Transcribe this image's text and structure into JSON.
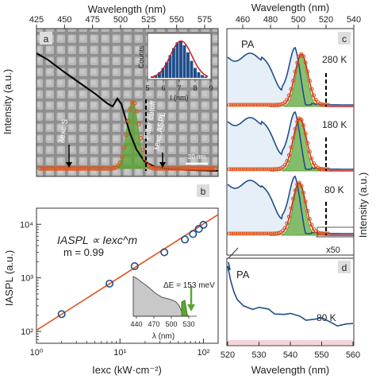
{
  "colors": {
    "blue": "#1f4e8c",
    "orange": "#e2561b",
    "green": "#5aa631",
    "red": "#c81e1e",
    "sem_bg": "#9c9c9c",
    "pa_fill": "#e6eef7",
    "inset_gray": "#c8c8c8",
    "inset_dark": "#555555"
  },
  "panel_a": {
    "letter": "a",
    "top_axis_label": "Wavelength (nm)",
    "top_ticks": [
      "425",
      "450",
      "475",
      "500",
      "525",
      "550",
      "575"
    ],
    "ylabel": "Intensity (a.u.)",
    "label_exc_s": "λexc,S",
    "label_exc_aspl": "λexc,ASPL",
    "label_filter": "Filter cutoff",
    "scalebar": "20 nm",
    "inset": {
      "ylabel": "Counts",
      "xlabel": "l (nm)",
      "xticks": [
        "5",
        "6",
        "7",
        "8",
        "9"
      ]
    }
  },
  "panel_b": {
    "letter": "b",
    "ylabel": "IASPL (a.u.)",
    "xlabel": "Iexc (kW·cm⁻²)",
    "formula": "IASPL ∝ Iexc^m",
    "m_text": "m = 0.99",
    "yticks": [
      "10²",
      "10³",
      "10⁴"
    ],
    "xticks": [
      "10⁰",
      "10¹",
      "10²"
    ],
    "inset": {
      "delta": "ΔE = 153 meV",
      "xlabel": "λ (nm)",
      "xticks": [
        "440",
        "470",
        "500",
        "530"
      ]
    }
  },
  "panel_c": {
    "letter": "c",
    "top_axis_label": "Wavelength (nm)",
    "top_ticks": [
      "460",
      "480",
      "500",
      "520",
      "540"
    ],
    "ylabel": "Intensity (a.u.)",
    "pa_label": "PA",
    "temps": [
      "280 K",
      "180 K",
      "80 K"
    ]
  },
  "panel_d": {
    "letter": "d",
    "pa_label": "PA",
    "temp": "80 K",
    "x50": "x50",
    "xlabel": "Wavelength (nm)",
    "xticks": [
      "520",
      "530",
      "540",
      "550",
      "560"
    ]
  },
  "chart_data": [
    {
      "type": "line",
      "panel": "b",
      "title": "",
      "xlabel": "Iexc (kW·cm⁻²)",
      "ylabel": "IASPL (a.u.)",
      "xscale": "log",
      "yscale": "log",
      "xlim": [
        1,
        150
      ],
      "ylim": [
        60,
        20000
      ],
      "series": [
        {
          "marker": "circle",
          "x": [
            2,
            7.5,
            15,
            34,
            60,
            75,
            88,
            100
          ],
          "y": [
            210,
            780,
            1650,
            3000,
            5200,
            6600,
            8200,
            9800
          ]
        },
        {
          "marker": "line",
          "x": [
            1,
            150
          ],
          "y": [
            105,
            15200
          ]
        }
      ]
    },
    {
      "type": "bar",
      "panel": "a-inset",
      "xlabel": "l (nm)",
      "ylabel": "Counts",
      "categories": [
        "5.0",
        "5.25",
        "5.5",
        "5.75",
        "6.0",
        "6.25",
        "6.5",
        "6.75",
        "7.0",
        "7.25",
        "7.5",
        "7.75",
        "8.0",
        "8.25",
        "8.5",
        "8.75"
      ],
      "values": [
        1,
        2,
        4,
        7,
        11,
        16,
        21,
        25,
        26,
        23,
        18,
        12,
        7,
        4,
        2,
        1
      ]
    },
    {
      "type": "line",
      "panel": "c",
      "xlabel": "Wavelength (nm)",
      "ylabel": "Intensity (a.u.)",
      "series": [
        {
          "name": "280 K",
          "peak_nm": 508
        },
        {
          "name": "180 K",
          "peak_nm": 507
        },
        {
          "name": "80 K",
          "peak_nm": 506
        }
      ]
    },
    {
      "type": "line",
      "panel": "d",
      "xlabel": "Wavelength (nm)",
      "xlim": [
        520,
        560
      ],
      "series": [
        {
          "name": "80 K",
          "x": [
            520,
            521,
            522,
            523,
            525,
            528,
            530,
            533,
            535,
            538,
            540,
            543,
            545,
            548,
            550,
            553,
            555,
            558,
            560
          ],
          "y": [
            1.0,
            0.8,
            0.65,
            0.55,
            0.48,
            0.44,
            0.42,
            0.4,
            0.38,
            0.36,
            0.33,
            0.32,
            0.3,
            0.28,
            0.27,
            0.25,
            0.22,
            0.2,
            0.2
          ]
        }
      ]
    }
  ]
}
